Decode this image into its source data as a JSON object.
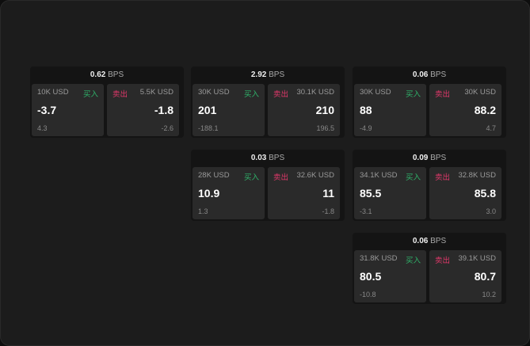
{
  "colors": {
    "buy": "#2fb36a",
    "sell": "#e0386a"
  },
  "cards": [
    {
      "spread": "0.62",
      "unit": "BPS",
      "buy": {
        "size": "10K USD",
        "label": "买入",
        "price": "-3.7",
        "change": "4.3"
      },
      "sell": {
        "size": "5.5K USD",
        "label": "卖出",
        "price": "-1.8",
        "change": "-2.6"
      }
    },
    {
      "spread": "2.92",
      "unit": "BPS",
      "buy": {
        "size": "30K USD",
        "label": "买入",
        "price": "201",
        "change": "-188.1"
      },
      "sell": {
        "size": "30.1K USD",
        "label": "卖出",
        "price": "210",
        "change": "196.5"
      }
    },
    {
      "spread": "0.06",
      "unit": "BPS",
      "buy": {
        "size": "30K USD",
        "label": "买入",
        "price": "88",
        "change": "-4.9"
      },
      "sell": {
        "size": "30K USD",
        "label": "卖出",
        "price": "88.2",
        "change": "4.7"
      }
    },
    {
      "spread": "0.03",
      "unit": "BPS",
      "buy": {
        "size": "28K USD",
        "label": "买入",
        "price": "10.9",
        "change": "1.3"
      },
      "sell": {
        "size": "32.6K USD",
        "label": "卖出",
        "price": "11",
        "change": "-1.8"
      }
    },
    {
      "spread": "0.09",
      "unit": "BPS",
      "buy": {
        "size": "34.1K USD",
        "label": "买入",
        "price": "85.5",
        "change": "-3.1"
      },
      "sell": {
        "size": "32.8K USD",
        "label": "卖出",
        "price": "85.8",
        "change": "3.0"
      }
    },
    {
      "spread": "0.06",
      "unit": "BPS",
      "buy": {
        "size": "31.8K USD",
        "label": "买入",
        "price": "80.5",
        "change": "-10.8"
      },
      "sell": {
        "size": "39.1K USD",
        "label": "卖出",
        "price": "80.7",
        "change": "10.2"
      }
    }
  ]
}
